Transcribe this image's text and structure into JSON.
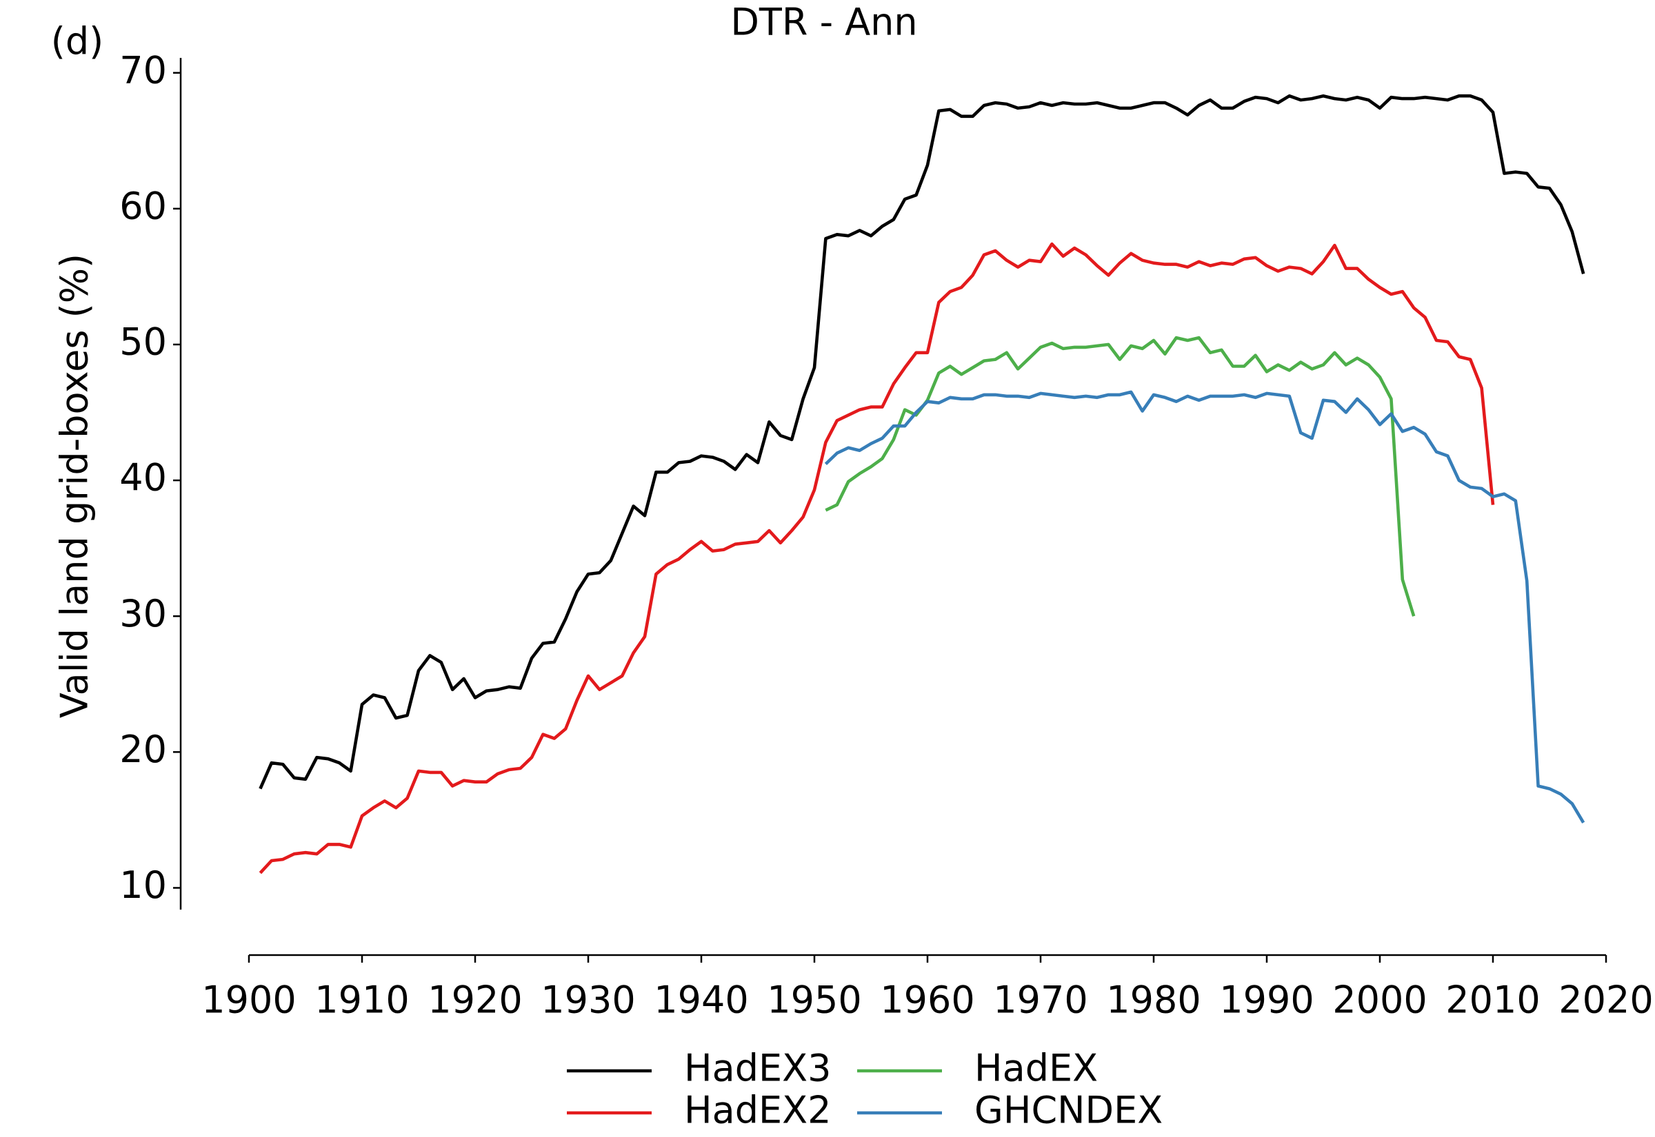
{
  "chart_data": {
    "type": "line",
    "title": "DTR - Ann",
    "panel_label": "(d)",
    "ylabel": "Valid land grid-boxes (%)",
    "x": [
      1901,
      1902,
      1903,
      1904,
      1905,
      1906,
      1907,
      1908,
      1909,
      1910,
      1911,
      1912,
      1913,
      1914,
      1915,
      1916,
      1917,
      1918,
      1919,
      1920,
      1921,
      1922,
      1923,
      1924,
      1925,
      1926,
      1927,
      1928,
      1929,
      1930,
      1931,
      1932,
      1933,
      1934,
      1935,
      1936,
      1937,
      1938,
      1939,
      1940,
      1941,
      1942,
      1943,
      1944,
      1945,
      1946,
      1947,
      1948,
      1949,
      1950,
      1951,
      1952,
      1953,
      1954,
      1955,
      1956,
      1957,
      1958,
      1959,
      1960,
      1961,
      1962,
      1963,
      1964,
      1965,
      1966,
      1967,
      1968,
      1969,
      1970,
      1971,
      1972,
      1973,
      1974,
      1975,
      1976,
      1977,
      1978,
      1979,
      1980,
      1981,
      1982,
      1983,
      1984,
      1985,
      1986,
      1987,
      1988,
      1989,
      1990,
      1991,
      1992,
      1993,
      1994,
      1995,
      1996,
      1997,
      1998,
      1999,
      2000,
      2001,
      2002,
      2003,
      2004,
      2005,
      2006,
      2007,
      2008,
      2009,
      2010,
      2011,
      2012,
      2013,
      2014,
      2015,
      2016,
      2017,
      2018
    ],
    "series": [
      {
        "name": "HadEX3",
        "color": "#000000",
        "values": [
          17.3,
          19.2,
          19.1,
          18.1,
          18.0,
          19.6,
          19.5,
          19.2,
          18.6,
          23.5,
          24.2,
          24.0,
          22.5,
          22.7,
          26.0,
          27.1,
          26.6,
          24.6,
          25.4,
          24.0,
          24.5,
          24.6,
          24.8,
          24.7,
          26.9,
          28.0,
          28.1,
          29.8,
          31.8,
          33.1,
          33.2,
          34.1,
          36.1,
          38.1,
          37.4,
          40.6,
          40.6,
          41.3,
          41.4,
          41.8,
          41.7,
          41.4,
          40.8,
          41.9,
          41.3,
          44.3,
          43.3,
          43.0,
          46.0,
          48.3,
          57.8,
          58.1,
          58.0,
          58.4,
          58.0,
          58.7,
          59.2,
          60.7,
          61.0,
          63.2,
          67.2,
          67.3,
          66.8,
          66.8,
          67.6,
          67.8,
          67.7,
          67.4,
          67.5,
          67.8,
          67.6,
          67.8,
          67.7,
          67.7,
          67.8,
          67.6,
          67.4,
          67.4,
          67.6,
          67.8,
          67.8,
          67.4,
          66.9,
          67.6,
          68.0,
          67.4,
          67.4,
          67.9,
          68.2,
          68.1,
          67.8,
          68.3,
          68.0,
          68.1,
          68.3,
          68.1,
          68.0,
          68.2,
          68.0,
          67.4,
          68.2,
          68.1,
          68.1,
          68.2,
          68.1,
          68.0,
          68.3,
          68.3,
          68.0,
          67.1,
          62.6,
          62.7,
          62.6,
          61.6,
          61.5,
          60.3,
          58.3,
          55.2
        ]
      },
      {
        "name": "HadEX2",
        "color": "#e31a1c",
        "values": [
          11.1,
          12.0,
          12.1,
          12.5,
          12.6,
          12.5,
          13.2,
          13.2,
          13.0,
          15.3,
          15.9,
          16.4,
          15.9,
          16.6,
          18.6,
          18.5,
          18.5,
          17.5,
          17.9,
          17.8,
          17.8,
          18.4,
          18.7,
          18.8,
          19.6,
          21.3,
          21.0,
          21.7,
          23.8,
          25.6,
          24.6,
          25.1,
          25.6,
          27.3,
          28.5,
          33.1,
          33.8,
          34.2,
          34.9,
          35.5,
          34.8,
          34.9,
          35.3,
          35.4,
          35.5,
          36.3,
          35.4,
          36.3,
          37.3,
          39.3,
          42.8,
          44.4,
          44.8,
          45.2,
          45.4,
          45.4,
          47.1,
          48.3,
          49.4,
          49.4,
          53.1,
          53.9,
          54.2,
          55.1,
          56.6,
          56.9,
          56.2,
          55.7,
          56.2,
          56.1,
          57.4,
          56.5,
          57.1,
          56.6,
          55.8,
          55.1,
          56.0,
          56.7,
          56.2,
          56.0,
          55.9,
          55.9,
          55.7,
          56.1,
          55.8,
          56.0,
          55.9,
          56.3,
          56.4,
          55.8,
          55.4,
          55.7,
          55.6,
          55.2,
          56.1,
          57.3,
          55.6,
          55.6,
          54.8,
          54.2,
          53.7,
          53.9,
          52.7,
          52.0,
          50.3,
          50.2,
          49.1,
          48.9,
          46.8,
          38.2,
          null,
          null,
          null,
          null,
          null,
          null,
          null,
          null
        ]
      },
      {
        "name": "HadEX",
        "color": "#4daf4a",
        "values": [
          null,
          null,
          null,
          null,
          null,
          null,
          null,
          null,
          null,
          null,
          null,
          null,
          null,
          null,
          null,
          null,
          null,
          null,
          null,
          null,
          null,
          null,
          null,
          null,
          null,
          null,
          null,
          null,
          null,
          null,
          null,
          null,
          null,
          null,
          null,
          null,
          null,
          null,
          null,
          null,
          null,
          null,
          null,
          null,
          null,
          null,
          null,
          null,
          null,
          null,
          37.8,
          38.2,
          39.9,
          40.5,
          41.0,
          41.6,
          43.0,
          45.2,
          44.8,
          45.9,
          47.9,
          48.4,
          47.8,
          48.3,
          48.8,
          48.9,
          49.4,
          48.2,
          49.0,
          49.8,
          50.1,
          49.7,
          49.8,
          49.8,
          49.9,
          50.0,
          48.9,
          49.9,
          49.7,
          50.3,
          49.3,
          50.5,
          50.3,
          50.5,
          49.4,
          49.6,
          48.4,
          48.4,
          49.2,
          48.0,
          48.5,
          48.1,
          48.7,
          48.2,
          48.5,
          49.4,
          48.5,
          49.0,
          48.5,
          47.6,
          46.0,
          32.7,
          30.0,
          null,
          null,
          null,
          null,
          null,
          null,
          null,
          null,
          null,
          null,
          null,
          null,
          null,
          null,
          null
        ]
      },
      {
        "name": "GHCNDEX",
        "color": "#377eb8",
        "values": [
          null,
          null,
          null,
          null,
          null,
          null,
          null,
          null,
          null,
          null,
          null,
          null,
          null,
          null,
          null,
          null,
          null,
          null,
          null,
          null,
          null,
          null,
          null,
          null,
          null,
          null,
          null,
          null,
          null,
          null,
          null,
          null,
          null,
          null,
          null,
          null,
          null,
          null,
          null,
          null,
          null,
          null,
          null,
          null,
          null,
          null,
          null,
          null,
          null,
          null,
          41.2,
          42.0,
          42.4,
          42.2,
          42.7,
          43.1,
          44.0,
          44.0,
          45.0,
          45.8,
          45.7,
          46.1,
          46.0,
          46.0,
          46.3,
          46.3,
          46.2,
          46.2,
          46.1,
          46.4,
          46.3,
          46.2,
          46.1,
          46.2,
          46.1,
          46.3,
          46.3,
          46.5,
          45.1,
          46.3,
          46.1,
          45.8,
          46.2,
          45.9,
          46.2,
          46.2,
          46.2,
          46.3,
          46.1,
          46.4,
          46.3,
          46.2,
          43.5,
          43.1,
          45.9,
          45.8,
          45.0,
          46.0,
          45.2,
          44.1,
          44.9,
          43.6,
          43.9,
          43.4,
          42.1,
          41.8,
          40.0,
          39.5,
          39.4,
          38.8,
          39.0,
          38.5,
          32.6,
          17.5,
          17.3,
          16.9,
          16.2,
          14.8
        ]
      }
    ],
    "xlim": [
      1900,
      2020
    ],
    "xticks": [
      1900,
      1910,
      1920,
      1930,
      1940,
      1950,
      1960,
      1970,
      1980,
      1990,
      2000,
      2010,
      2020
    ],
    "ylim": [
      8.4,
      71.1
    ],
    "yticks": [
      10,
      20,
      30,
      40,
      50,
      60,
      70
    ],
    "grid": false,
    "legend": "bottom"
  }
}
